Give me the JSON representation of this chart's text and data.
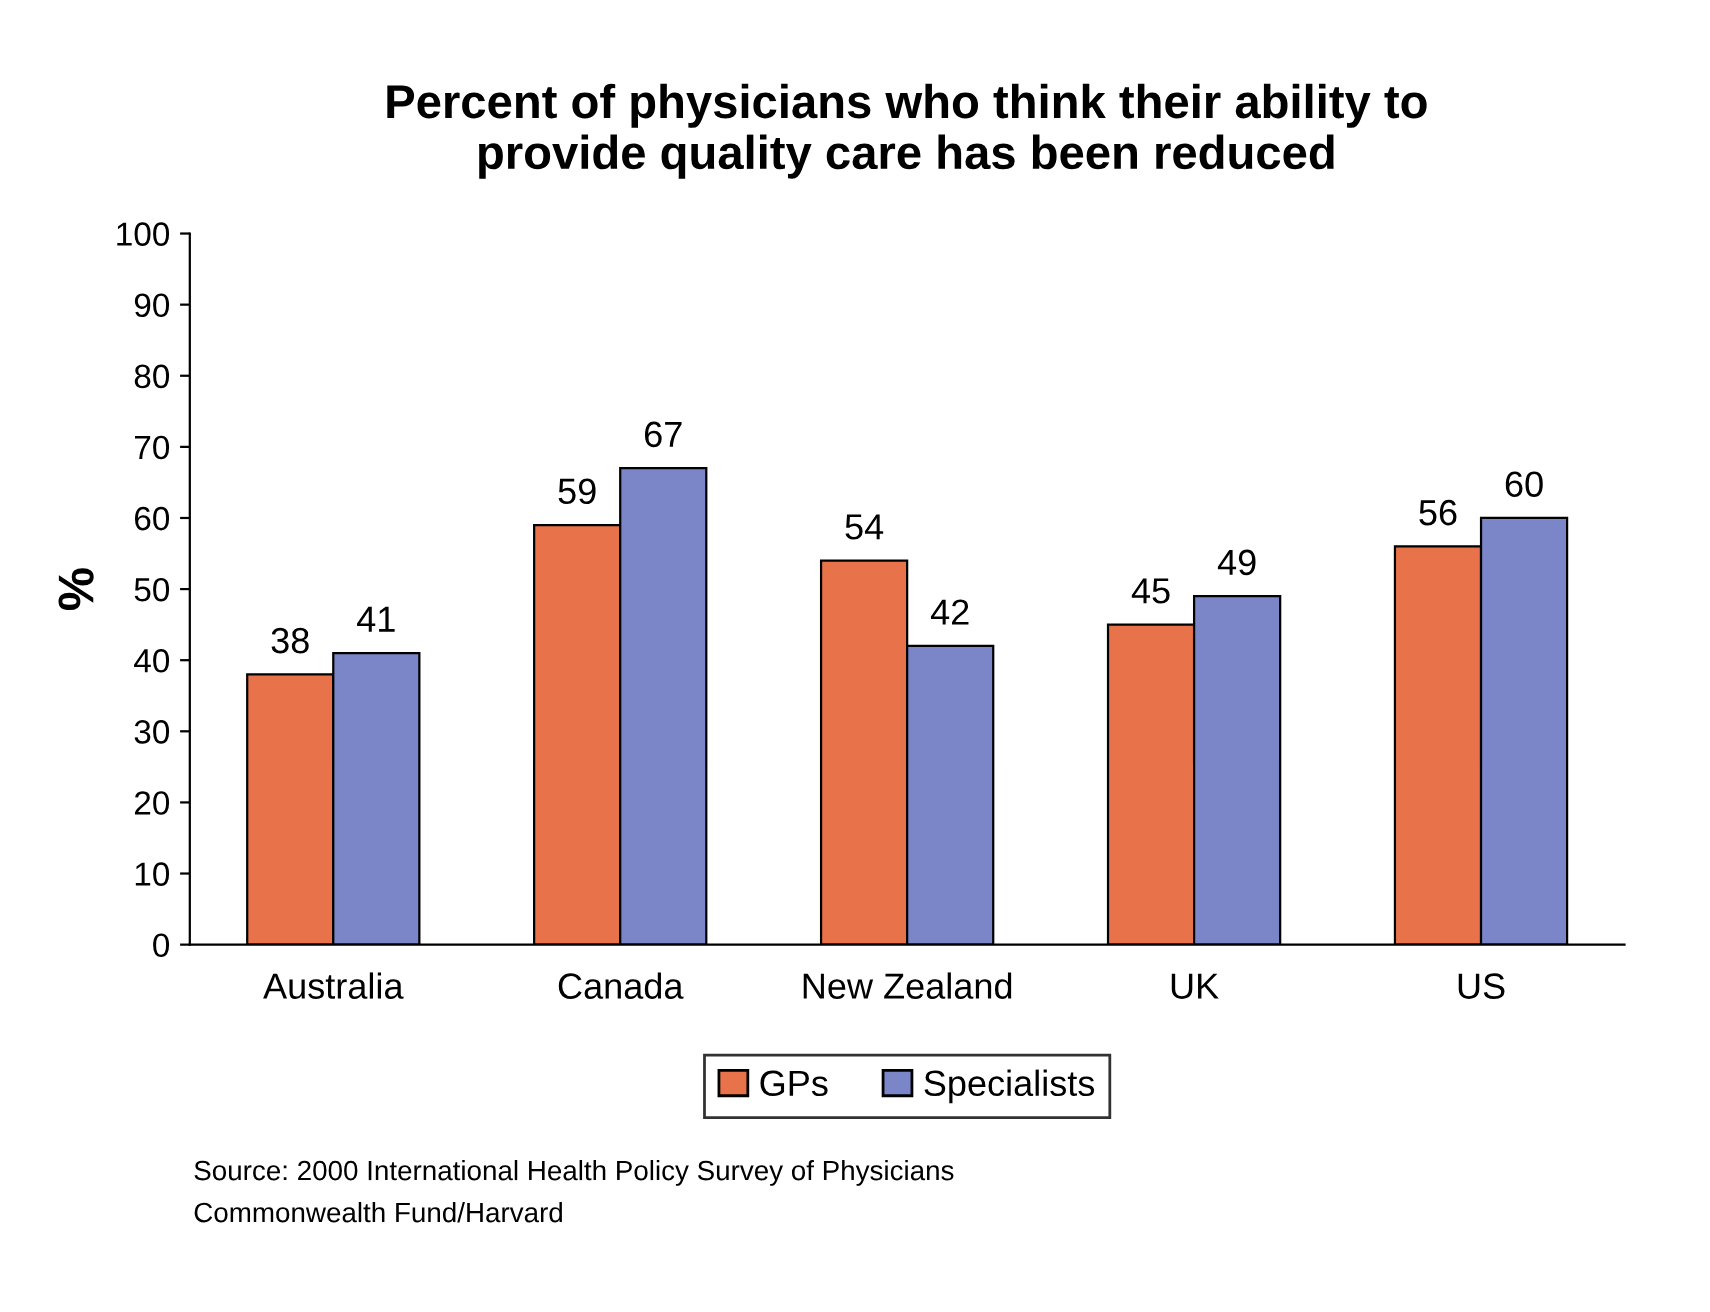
{
  "chart_data": {
    "type": "bar",
    "title": "Percent of physicians who think their ability to\nprovide quality care has been reduced",
    "ylabel": "%",
    "categories": [
      "Australia",
      "Canada",
      "New Zealand",
      "UK",
      "US"
    ],
    "series": [
      {
        "name": "GPs",
        "color": "#e8734a",
        "values": [
          38,
          59,
          54,
          45,
          56
        ]
      },
      {
        "name": "Specialists",
        "color": "#7b86c8",
        "values": [
          41,
          67,
          42,
          49,
          60
        ]
      }
    ],
    "ylim": [
      0,
      100
    ],
    "yticks": [
      0,
      10,
      20,
      30,
      40,
      50,
      60,
      70,
      80,
      90,
      100
    ],
    "grid": false,
    "legend": "bottom",
    "data_labels": true,
    "annotations": [
      "Source: 2000 International Health Policy Survey of Physicians\nCommonwealth Fund/Harvard"
    ]
  }
}
